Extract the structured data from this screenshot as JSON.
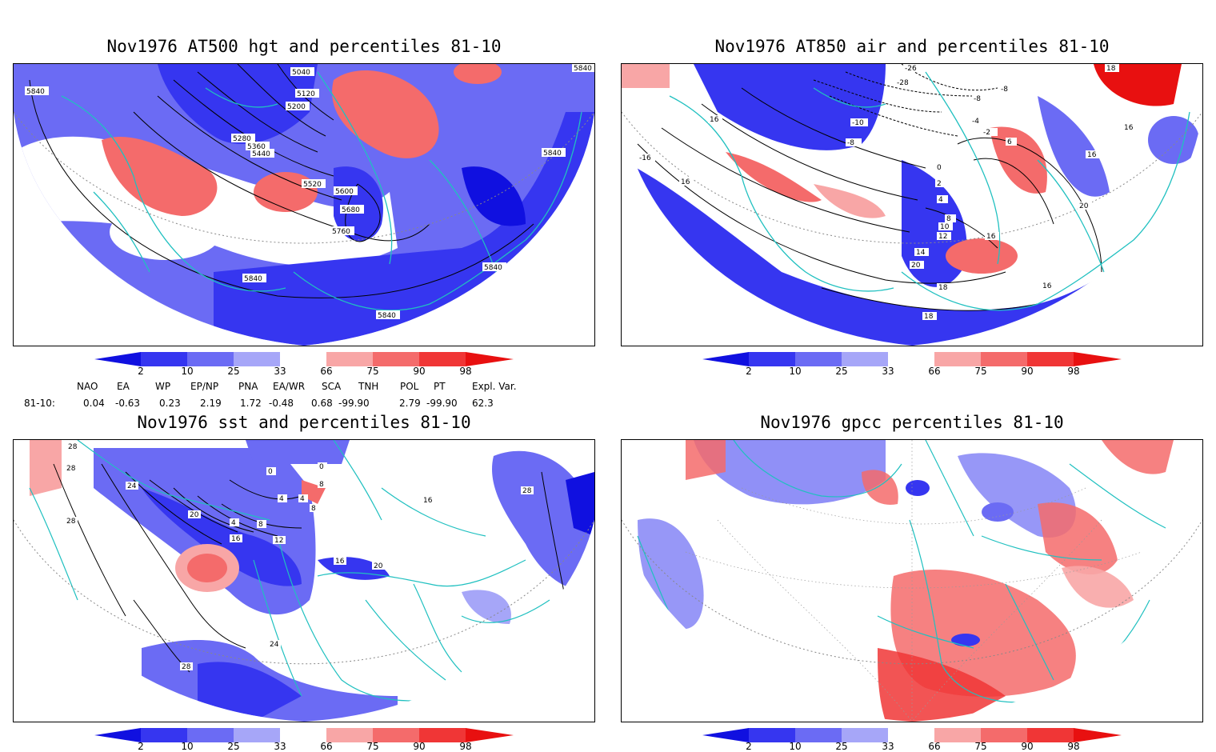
{
  "panels": [
    {
      "id": "p1",
      "title": "Nov1976 AT500 hgt and percentiles 81-10",
      "contour_labels": [
        "5040",
        "5120",
        "5200",
        "5280",
        "5360",
        "5440",
        "5520",
        "5600",
        "5680",
        "5760",
        "5840",
        "5840",
        "5840",
        "5840",
        "5840",
        "5840"
      ]
    },
    {
      "id": "p2",
      "title": "Nov1976 AT850 air and percentiles 81-10",
      "contour_labels": [
        "-26",
        "-28",
        "-8",
        "-8",
        "-4",
        "-2",
        "-10",
        "-8",
        "6",
        "16",
        "16",
        "16",
        "18",
        "0",
        "2",
        "4",
        "8",
        "10",
        "12",
        "14",
        "16",
        "18",
        "20",
        "20",
        "16",
        "18",
        "16",
        "-16"
      ]
    },
    {
      "id": "p3",
      "title": "Nov1976 sst and percentiles 81-10",
      "contour_labels": [
        "28",
        "28",
        "24",
        "28",
        "0",
        "0",
        "8",
        "4",
        "4",
        "8",
        "20",
        "4",
        "8",
        "16",
        "12",
        "16",
        "20",
        "28",
        "24",
        "28",
        "16"
      ]
    },
    {
      "id": "p4",
      "title": "Nov1976 gpcc percentiles 81-10",
      "contour_labels": []
    }
  ],
  "colorbar": {
    "labels": [
      "2",
      "10",
      "25",
      "33",
      "66",
      "75",
      "90",
      "98"
    ],
    "colors": {
      "lt2": "#1010e0",
      "c2_10": "#3636f0",
      "c10_25": "#6b6bf4",
      "c25_33": "#a6a6f8",
      "c33_66": "#ffffff",
      "c66_75": "#f8a6a6",
      "c75_90": "#f46b6b",
      "c90_98": "#f03636",
      "gt98": "#e81010"
    }
  },
  "indices": {
    "header": [
      "NAO",
      "EA",
      "WP",
      "EP/NP",
      "PNA",
      "EA/WR",
      "SCA",
      "TNH",
      "POL",
      "PT",
      "Expl. Var."
    ],
    "row_label": "81-10:",
    "values": [
      "0.04",
      "-0.63",
      "0.23",
      "2.19",
      "1.72",
      "-0.48",
      "0.68",
      "-99.90",
      "2.79",
      "-99.90",
      "62.3"
    ]
  },
  "colors": {
    "coast": "#20c0c0",
    "contour": "#000000",
    "grid": "#999999"
  }
}
